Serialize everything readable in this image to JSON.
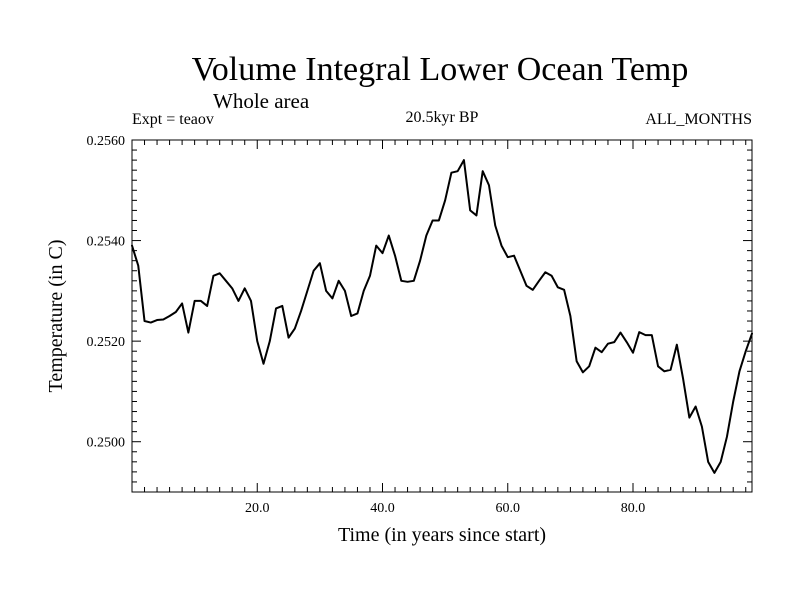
{
  "chart_data": {
    "type": "line",
    "title": "Volume Integral Lower Ocean Temp",
    "subtitle": "Whole area",
    "expt_label": "Expt = teaov",
    "period_label": "20.5kyr BP",
    "months_label": "ALL_MONTHS",
    "xlabel": "Time (in years since start)",
    "ylabel": "Temperature (in C)",
    "xlim": [
      0,
      99
    ],
    "ylim": [
      0.249,
      0.256
    ],
    "x_ticks": [
      20,
      40,
      60,
      80
    ],
    "x_tick_labels": [
      "20.0",
      "40.0",
      "60.0",
      "80.0"
    ],
    "y_ticks": [
      0.25,
      0.252,
      0.254,
      0.256
    ],
    "y_tick_labels": [
      "0.2500",
      "0.2520",
      "0.2540",
      "0.2560"
    ],
    "series": [
      {
        "name": "Temperature",
        "color": "#000000",
        "x": [
          0,
          1,
          2,
          3,
          4,
          5,
          6,
          7,
          8,
          9,
          10,
          11,
          12,
          13,
          14,
          15,
          16,
          17,
          18,
          19,
          20,
          21,
          22,
          23,
          24,
          25,
          26,
          27,
          28,
          29,
          30,
          31,
          32,
          33,
          34,
          35,
          36,
          37,
          38,
          39,
          40,
          41,
          42,
          43,
          44,
          45,
          46,
          47,
          48,
          49,
          50,
          51,
          52,
          53,
          54,
          55,
          56,
          57,
          58,
          59,
          60,
          61,
          62,
          63,
          64,
          65,
          66,
          67,
          68,
          69,
          70,
          71,
          72,
          73,
          74,
          75,
          76,
          77,
          78,
          79,
          80,
          81,
          82,
          83,
          84,
          85,
          86,
          87,
          88,
          89,
          90,
          91,
          92,
          93,
          94,
          95,
          96,
          97,
          98,
          99
        ],
        "values": [
          0.2539,
          0.2535,
          0.2524,
          0.25237,
          0.25242,
          0.25243,
          0.2525,
          0.25258,
          0.25275,
          0.25217,
          0.2528,
          0.2528,
          0.2527,
          0.2533,
          0.25335,
          0.2532,
          0.25305,
          0.2528,
          0.25305,
          0.2528,
          0.252,
          0.25155,
          0.252,
          0.25265,
          0.2527,
          0.25207,
          0.25225,
          0.2526,
          0.253,
          0.2534,
          0.25355,
          0.253,
          0.25285,
          0.2532,
          0.253,
          0.2525,
          0.25255,
          0.253,
          0.2533,
          0.2539,
          0.25375,
          0.2541,
          0.2537,
          0.2532,
          0.25318,
          0.2532,
          0.2536,
          0.2541,
          0.2544,
          0.2544,
          0.2548,
          0.25535,
          0.25538,
          0.2556,
          0.2546,
          0.2545,
          0.25538,
          0.2551,
          0.2543,
          0.2539,
          0.25367,
          0.2537,
          0.2534,
          0.2531,
          0.25302,
          0.2532,
          0.25337,
          0.2533,
          0.25307,
          0.25302,
          0.2525,
          0.2516,
          0.25138,
          0.2515,
          0.25187,
          0.25178,
          0.25195,
          0.25198,
          0.25217,
          0.25198,
          0.25177,
          0.25218,
          0.25212,
          0.25212,
          0.2515,
          0.2514,
          0.25143,
          0.25193,
          0.25125,
          0.25048,
          0.2507,
          0.2503,
          0.2496,
          0.24938,
          0.2496,
          0.2501,
          0.2508,
          0.2514,
          0.2518,
          0.25215
        ]
      }
    ]
  }
}
